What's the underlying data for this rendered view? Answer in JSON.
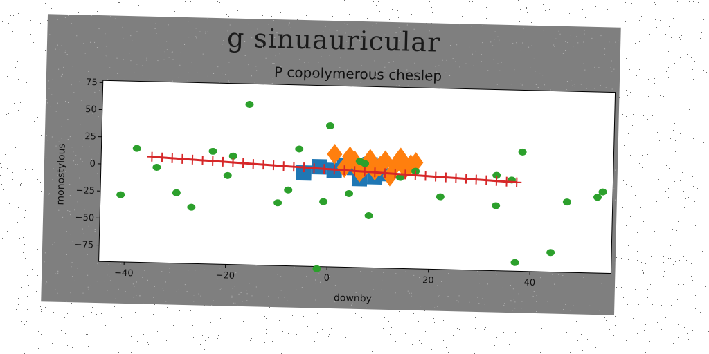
{
  "chart_data": {
    "type": "scatter",
    "suptitle": "g sinuauricular",
    "title": "P copolymerous cheslep",
    "xlabel": "downby",
    "ylabel": "monostylous",
    "xlim": [
      -45,
      56
    ],
    "ylim": [
      -90,
      77
    ],
    "xticks": [
      -40,
      -20,
      0,
      20,
      40
    ],
    "xtick_labels": [
      "−40",
      "−20",
      "0",
      "20",
      "40"
    ],
    "yticks": [
      -75,
      -50,
      -25,
      0,
      25,
      50,
      75
    ],
    "ytick_labels": [
      "−75",
      "−50",
      "−25",
      "0",
      "25",
      "50",
      "75"
    ],
    "grid": false,
    "legend": "none",
    "colors": {
      "figure_background": "#7f7f7f",
      "axes_background": "#ffffff",
      "blue_squares": "#1f77b4",
      "orange_diamonds": "#ff7f0e",
      "green_circles": "#2ca02c",
      "red_line": "#d62728"
    },
    "series": [
      {
        "marker": "square",
        "color": "#1f77b4",
        "x": [
          -5,
          -2,
          1,
          3,
          5,
          6,
          8,
          9,
          10
        ],
        "y": [
          -4,
          2,
          -1,
          4,
          2,
          -8,
          5,
          -6,
          -3
        ]
      },
      {
        "marker": "diamond",
        "color": "#ff7f0e",
        "x": [
          1,
          3,
          4,
          5,
          6,
          7,
          8,
          9,
          10,
          11,
          12,
          13,
          14,
          15,
          16,
          17
        ],
        "y": [
          14,
          2,
          12,
          8,
          -2,
          3,
          10,
          0,
          4,
          9,
          -5,
          5,
          12,
          2,
          6,
          8
        ]
      },
      {
        "marker": "circle",
        "color": "#2ca02c",
        "x": [
          -41,
          -38,
          -34,
          -30,
          -27,
          -23,
          -20,
          -19,
          -16,
          -10,
          -8,
          -6,
          -2,
          -1,
          0,
          4,
          6,
          7,
          8,
          14,
          17,
          22,
          33,
          33,
          36,
          37,
          38,
          44,
          47,
          53,
          54
        ],
        "y": [
          -28,
          15,
          -2,
          -25,
          -38,
          14,
          -8,
          10,
          58,
          -32,
          -20,
          18,
          -92,
          -30,
          40,
          -22,
          8,
          6,
          -42,
          -6,
          0,
          -23,
          -2,
          -30,
          -6,
          -82,
          20,
          -72,
          -25,
          -20,
          -15
        ]
      },
      {
        "marker": "plus-line",
        "color": "#d62728",
        "x": [
          -35,
          -33,
          -31,
          -29,
          -27,
          -25,
          -23,
          -21,
          -19,
          -17,
          -15,
          -13,
          -11,
          -9,
          -7,
          -5,
          -3,
          -1,
          1,
          3,
          5,
          7,
          9,
          11,
          13,
          15,
          17,
          19,
          21,
          23,
          25,
          27,
          29,
          31,
          33,
          35,
          37
        ],
        "y": [
          7.6,
          7.2,
          6.7,
          6.3,
          5.9,
          5.4,
          5.0,
          4.6,
          4.1,
          3.7,
          3.2,
          2.8,
          2.4,
          1.9,
          1.5,
          1.1,
          0.6,
          0.2,
          -0.2,
          -0.6,
          -1.1,
          -1.5,
          -1.9,
          -2.4,
          -2.8,
          -3.2,
          -3.7,
          -4.1,
          -4.6,
          -5.0,
          -5.4,
          -5.9,
          -6.3,
          -6.7,
          -7.2,
          -7.6,
          -8.0
        ]
      }
    ]
  }
}
